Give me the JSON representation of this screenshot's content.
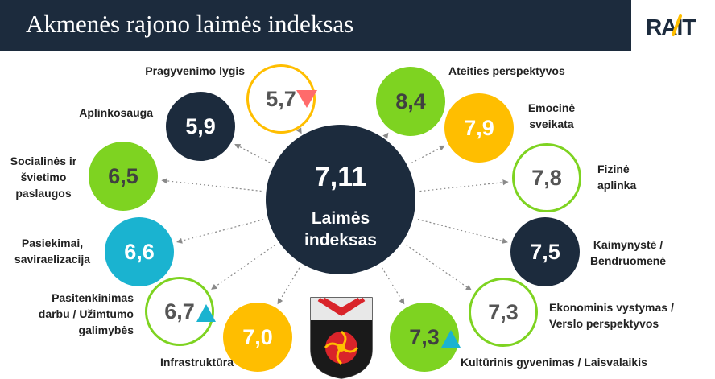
{
  "title": "Akmenės rajono laimės indeksas",
  "logo": "RAIT",
  "center": {
    "value": "7,11",
    "label_1": "Laimės",
    "label_2": "indeksas"
  },
  "nodes": {
    "pragyvenimo": {
      "value": "5,7",
      "label": "Pragyvenimo lygis"
    },
    "ateities": {
      "value": "8,4",
      "label": "Ateities perspektyvos"
    },
    "aplinkosauga": {
      "value": "5,9",
      "label": "Aplinkosauga"
    },
    "emocine": {
      "value": "7,9",
      "label_1": "Emocinė",
      "label_2": "sveikata"
    },
    "socialines": {
      "value": "6,5",
      "label_1": "Socialinės ir",
      "label_2": "švietimo",
      "label_3": "paslaugos"
    },
    "fizine": {
      "value": "7,8",
      "label_1": "Fizinė",
      "label_2": "aplinka"
    },
    "pasiekimai": {
      "value": "6,6",
      "label_1": "Pasiekimai,",
      "label_2": "saviraelizacija"
    },
    "kaimynyste": {
      "value": "7,5",
      "label_1": "Kaimynystė /",
      "label_2": "Bendruomenė"
    },
    "pasitenkinimas": {
      "value": "6,7",
      "label_1": "Pasitenkinimas",
      "label_2": "darbu / Užimtumo",
      "label_3": "galimybės"
    },
    "ekonominis": {
      "value": "7,3",
      "label_1": "Ekonominis vystymas /",
      "label_2": "Verslo perspektyvos"
    },
    "infrastruktura": {
      "value": "7,0",
      "label": "Infrastruktūra"
    },
    "kulturinis": {
      "value": "7,3",
      "label": "Kultūrinis gyvenimas / Laisvalaikis"
    }
  },
  "colors": {
    "navy": "#1c2b3d",
    "green": "#7ed321",
    "amber": "#ffbe00",
    "teal": "#1ab3d0",
    "decline": "#ff6b6b",
    "rise": "#1ab3d0"
  },
  "icons": {
    "decline_marker": "triangle-down",
    "rise_marker": "triangle-up"
  }
}
